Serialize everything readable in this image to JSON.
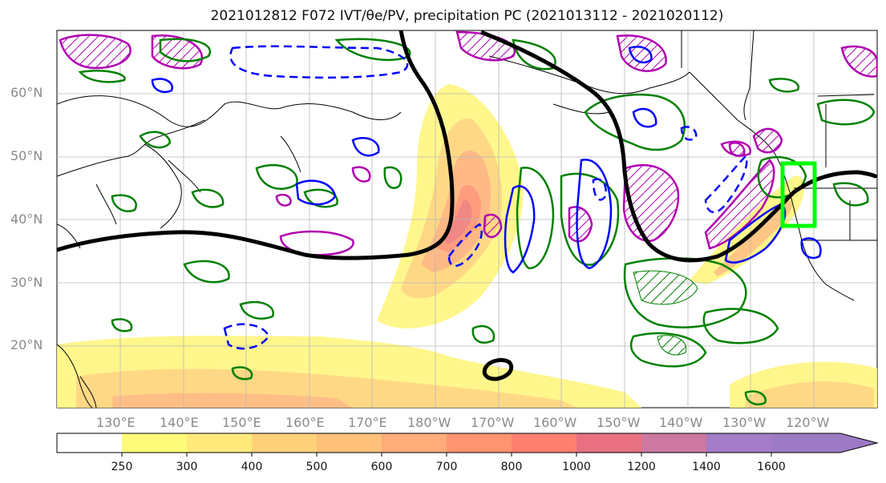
{
  "title": "2021012812 F072 IVT/θe/PV, precipitation PC (2021013112 - 2021020112)",
  "map": {
    "lat_labels": [
      "60°N",
      "50°N",
      "40°N",
      "30°N",
      "20°N"
    ],
    "lon_labels": [
      "130°E",
      "140°E",
      "150°E",
      "160°E",
      "170°E",
      "180°W",
      "170°W",
      "160°W",
      "150°W",
      "140°W",
      "130°W",
      "120°W"
    ],
    "box_color": "#00ff00",
    "theta_e_color": "#000000",
    "pv_positive_color": "#0000ff",
    "precip_color": "#008000",
    "ivt_anomaly_color": "#bf00bf"
  },
  "colorbar": {
    "ticks": [
      "250",
      "300",
      "400",
      "500",
      "600",
      "700",
      "800",
      "1000",
      "1200",
      "1400",
      "1600"
    ],
    "colors": [
      "#ffffff",
      "#fffb7a",
      "#ffe97a",
      "#ffd27a",
      "#ffc07a",
      "#ffab7a",
      "#ff9470",
      "#ff8070",
      "#e87080",
      "#cc78a0",
      "#a47cc8",
      "#9d7ac4"
    ]
  }
}
